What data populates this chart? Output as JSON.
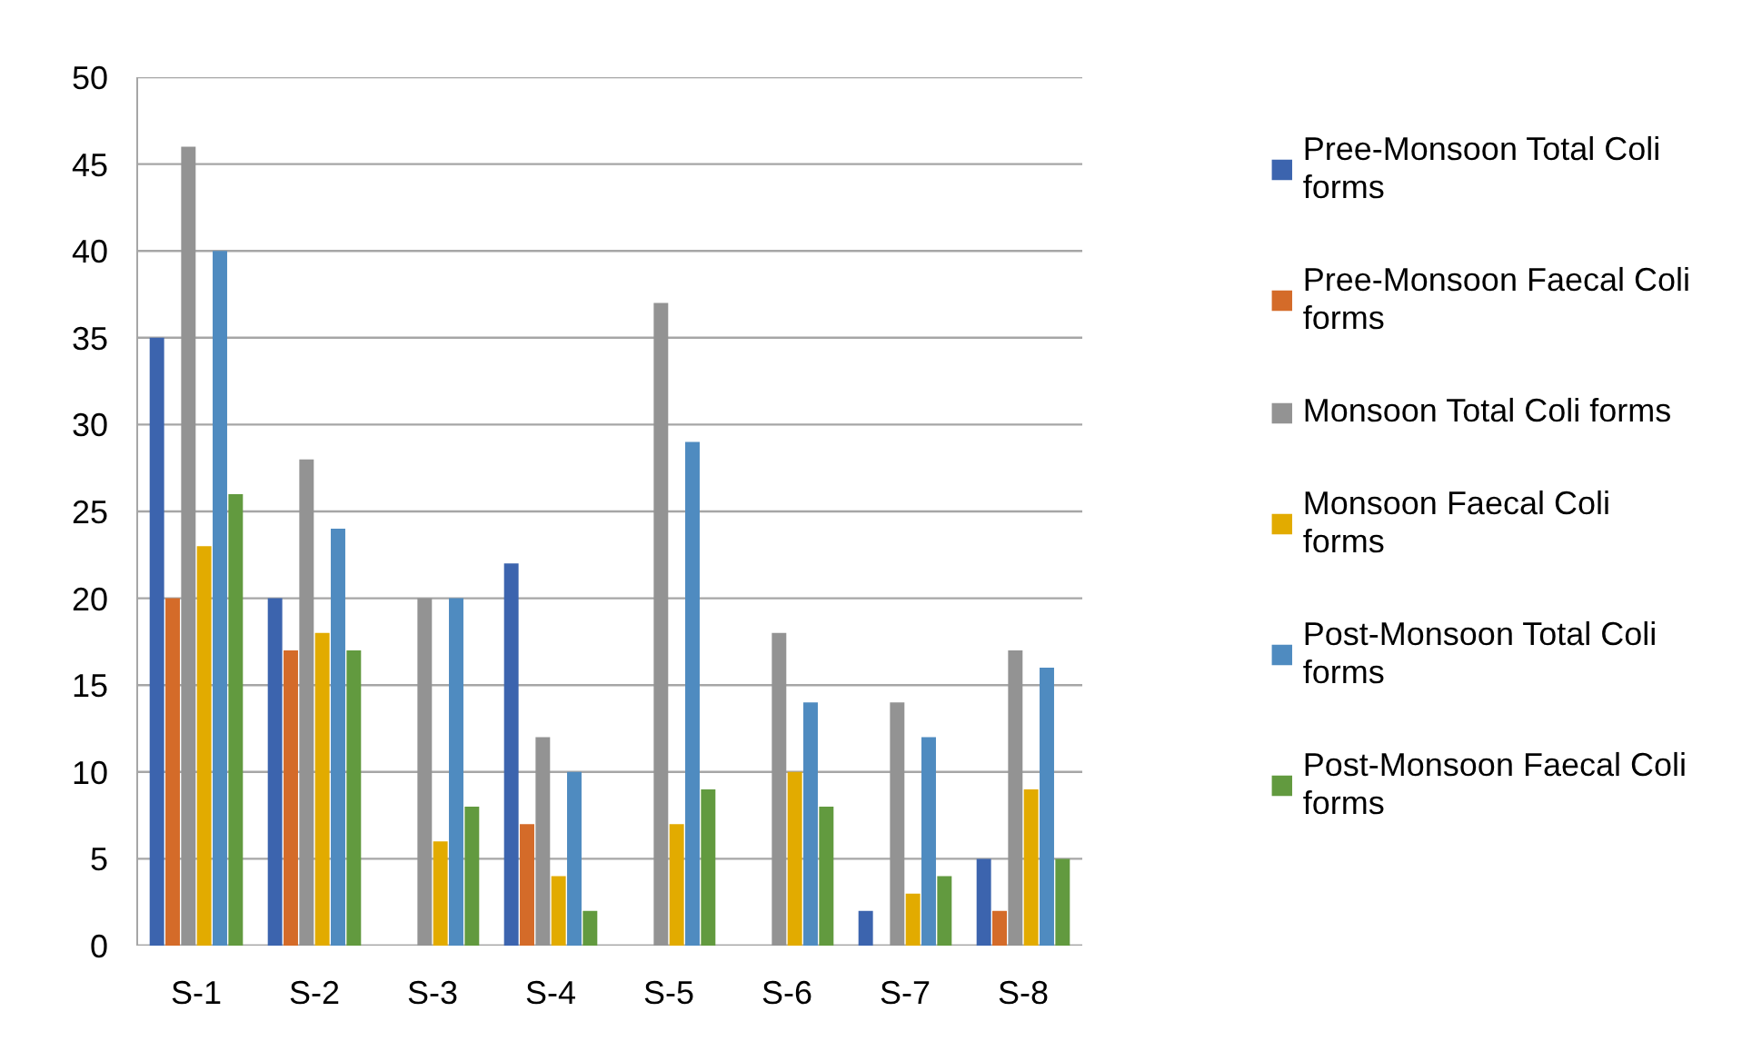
{
  "chart_data": {
    "type": "bar",
    "categories": [
      "S-1",
      "S-2",
      "S-3",
      "S-4",
      "S-5",
      "S-6",
      "S-7",
      "S-8"
    ],
    "series": [
      {
        "name": "Pree-Monsoon Total Coli forms",
        "color": "#3c64ae",
        "values": [
          35,
          20,
          null,
          22,
          null,
          null,
          2,
          5
        ]
      },
      {
        "name": "Pree-Monsoon Faecal Coli forms",
        "color": "#d46b29",
        "values": [
          20,
          17,
          null,
          7,
          null,
          null,
          null,
          2
        ]
      },
      {
        "name": "Monsoon Total Coli forms",
        "color": "#939393",
        "values": [
          46,
          28,
          20,
          12,
          37,
          18,
          14,
          17
        ]
      },
      {
        "name": "Monsoon Faecal Coli forms",
        "color": "#e2ab00",
        "values": [
          23,
          18,
          6,
          4,
          7,
          10,
          3,
          9
        ]
      },
      {
        "name": "Post-Monsoon Total Coli forms",
        "color": "#4f8bc0",
        "values": [
          40,
          24,
          20,
          10,
          29,
          14,
          12,
          16
        ]
      },
      {
        "name": "Post-Monsoon Faecal Coli forms",
        "color": "#629a3f",
        "values": [
          26,
          17,
          8,
          2,
          9,
          8,
          4,
          5
        ]
      }
    ],
    "ylim": [
      0,
      50
    ],
    "yticks": [
      0,
      5,
      10,
      15,
      20,
      25,
      30,
      35,
      40,
      45,
      50
    ],
    "grid": "y",
    "legend": "right"
  }
}
